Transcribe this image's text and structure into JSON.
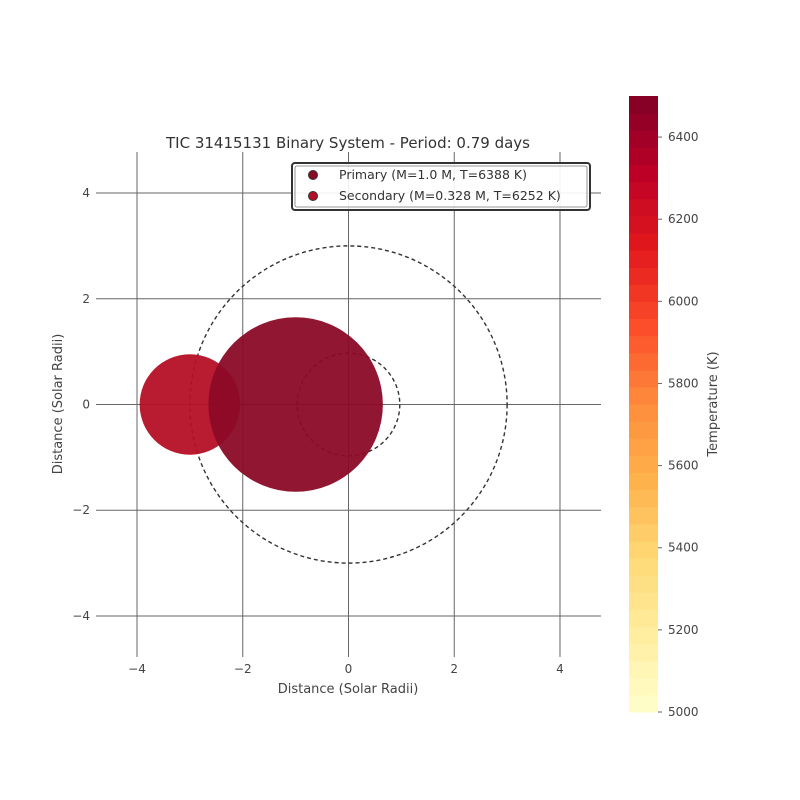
{
  "chart_data": {
    "type": "scatter",
    "title": "TIC 31415131 Binary System - Period: 0.79 days",
    "xlabel": "Distance (Solar Radii)",
    "ylabel": "Distance (Solar Radii)",
    "xlim": [
      -4.7,
      4.7
    ],
    "ylim": [
      -4.7,
      4.7
    ],
    "xticks": [
      -4,
      -2,
      0,
      2,
      4
    ],
    "yticks": [
      -4,
      -2,
      0,
      2,
      4
    ],
    "xtick_labels": [
      "−4",
      "−2",
      "0",
      "2",
      "4"
    ],
    "ytick_labels": [
      "−4",
      "−2",
      "0",
      "2",
      "4"
    ],
    "grid": true,
    "legend_position": "top-right",
    "series": [
      {
        "name": "Primary (M=1.0 M, T=6388 K)",
        "x": -1.0,
        "y": 0.0,
        "radius": 1.65,
        "temperature": 6388,
        "color": "#8b0a26"
      },
      {
        "name": "Secondary (M=0.328 M, T=6252 K)",
        "x": -3.0,
        "y": 0.0,
        "radius": 0.95,
        "temperature": 6252,
        "color": "#b50f26"
      }
    ],
    "orbits": [
      {
        "center_x": 0,
        "center_y": 0,
        "radius": 3.0
      },
      {
        "center_x": 0,
        "center_y": 0,
        "radius": 0.97
      }
    ],
    "colorbar": {
      "label": "Temperature (K)",
      "min": 5000,
      "max": 6500,
      "ticks": [
        5000,
        5200,
        5400,
        5600,
        5800,
        6000,
        6200,
        6400
      ],
      "tick_labels": [
        "5000",
        "5200",
        "5400",
        "5600",
        "5800",
        "6000",
        "6200",
        "6400"
      ],
      "colormap": "YlOrRd",
      "colors": [
        "#ffffcc",
        "#ffeda0",
        "#fed976",
        "#feb24c",
        "#fd8d3c",
        "#fc4e2a",
        "#e31a1c",
        "#bd0026",
        "#800026"
      ]
    }
  }
}
